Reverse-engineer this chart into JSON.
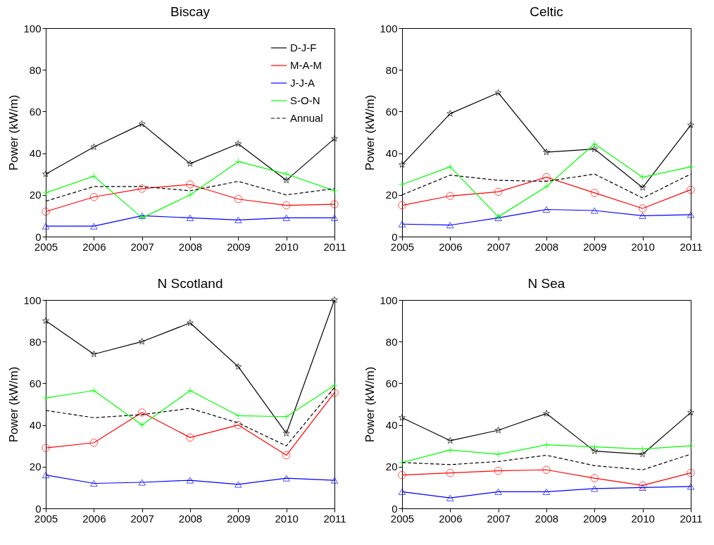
{
  "chart_data": [
    {
      "type": "line",
      "title": "Biscay",
      "ylabel": "Power (kW/m)",
      "x": [
        2005,
        2006,
        2007,
        2008,
        2009,
        2010,
        2011
      ],
      "xlim": [
        2005,
        2011
      ],
      "xticks": [
        2005,
        2006,
        2007,
        2008,
        2009,
        2010,
        2011
      ],
      "ylim": [
        0,
        100
      ],
      "yticks": [
        0,
        20,
        40,
        60,
        80,
        100
      ],
      "legend": "top right",
      "series": [
        {
          "name": "D-J-F",
          "color": "#000000",
          "marker": "star",
          "line_style": "solid",
          "values": [
            30,
            43,
            54,
            35,
            44.5,
            27,
            47
          ]
        },
        {
          "name": "M-A-M",
          "color": "#ff0000",
          "marker": "circle",
          "values": [
            12,
            19,
            23,
            25,
            18,
            15,
            15.5
          ]
        },
        {
          "name": "J-J-A",
          "color": "#0000ff",
          "marker": "triangle",
          "values": [
            5,
            5,
            10,
            9,
            8,
            9,
            9
          ]
        },
        {
          "name": "S-O-N",
          "color": "#00ff00",
          "marker": "cross",
          "values": [
            21,
            29,
            9,
            20,
            36,
            30,
            22
          ]
        },
        {
          "name": "Annual",
          "color": "#000000",
          "marker": "none",
          "line_style": "dashed",
          "values": [
            17,
            24,
            24,
            22,
            26.5,
            20,
            23
          ]
        }
      ]
    },
    {
      "type": "line",
      "title": "Celtic",
      "ylabel": "Power (kW/m)",
      "x": [
        2005,
        2006,
        2007,
        2008,
        2009,
        2010,
        2011
      ],
      "xlim": [
        2005,
        2011
      ],
      "xticks": [
        2005,
        2006,
        2007,
        2008,
        2009,
        2010,
        2011
      ],
      "ylim": [
        0,
        100
      ],
      "yticks": [
        0,
        20,
        40,
        60,
        80,
        100
      ],
      "series": [
        {
          "color": "#000000",
          "marker": "star",
          "values": [
            34.5,
            59,
            69,
            40.5,
            42,
            23.5,
            53.5
          ]
        },
        {
          "color": "#ff0000",
          "marker": "circle",
          "values": [
            15,
            19.5,
            21.5,
            28.5,
            21,
            13.5,
            22.5
          ]
        },
        {
          "color": "#0000ff",
          "marker": "triangle",
          "values": [
            6,
            5.5,
            9,
            13,
            12.5,
            10,
            10.5
          ]
        },
        {
          "color": "#00ff00",
          "marker": "cross",
          "values": [
            25,
            33.5,
            9.5,
            24,
            44.5,
            28.5,
            33.5
          ]
        },
        {
          "color": "#000000",
          "marker": "none",
          "line_style": "dashed",
          "values": [
            20,
            29.5,
            27,
            26.5,
            30,
            18.5,
            30
          ]
        }
      ]
    },
    {
      "type": "line",
      "title": "N Scotland",
      "ylabel": "Power (kW/m)",
      "x": [
        2005,
        2006,
        2007,
        2008,
        2009,
        2010,
        2011
      ],
      "xlim": [
        2005,
        2011
      ],
      "xticks": [
        2005,
        2006,
        2007,
        2008,
        2009,
        2010,
        2011
      ],
      "ylim": [
        0,
        100
      ],
      "yticks": [
        0,
        20,
        40,
        60,
        80,
        100
      ],
      "series": [
        {
          "color": "#000000",
          "marker": "star",
          "values": [
            90,
            74,
            80,
            89,
            68,
            36,
            100
          ]
        },
        {
          "color": "#ff0000",
          "marker": "circle",
          "values": [
            29,
            31.5,
            46,
            34,
            40,
            25.5,
            55.5
          ]
        },
        {
          "color": "#0000ff",
          "marker": "triangle",
          "values": [
            16,
            12,
            12.5,
            13.5,
            11.5,
            14.5,
            13.5
          ]
        },
        {
          "color": "#00ff00",
          "marker": "cross",
          "values": [
            53,
            56.5,
            40,
            56.5,
            44.5,
            44,
            59
          ]
        },
        {
          "color": "#000000",
          "marker": "none",
          "line_style": "dashed",
          "values": [
            47,
            43.5,
            45,
            48,
            41,
            30,
            58
          ]
        }
      ]
    },
    {
      "type": "line",
      "title": "N Sea",
      "ylabel": "Power (kW/m)",
      "x": [
        2005,
        2006,
        2007,
        2008,
        2009,
        2010,
        2011
      ],
      "xlim": [
        2005,
        2011
      ],
      "xticks": [
        2005,
        2006,
        2007,
        2008,
        2009,
        2010,
        2011
      ],
      "ylim": [
        0,
        100
      ],
      "yticks": [
        0,
        20,
        40,
        60,
        80,
        100
      ],
      "series": [
        {
          "color": "#000000",
          "marker": "star",
          "values": [
            43.5,
            32.5,
            37.5,
            45.5,
            27.5,
            26,
            46
          ]
        },
        {
          "color": "#ff0000",
          "marker": "circle",
          "values": [
            16,
            17,
            18,
            18.5,
            14.5,
            11,
            17
          ]
        },
        {
          "color": "#0000ff",
          "marker": "triangle",
          "values": [
            8,
            5,
            8,
            8,
            9.5,
            10,
            10.5
          ]
        },
        {
          "color": "#00ff00",
          "marker": "cross",
          "values": [
            22,
            28,
            26,
            30.5,
            29.5,
            28.5,
            30
          ]
        },
        {
          "color": "#000000",
          "marker": "none",
          "line_style": "dashed",
          "values": [
            22,
            21,
            22.5,
            25.5,
            20.5,
            18.5,
            26
          ]
        }
      ]
    }
  ]
}
